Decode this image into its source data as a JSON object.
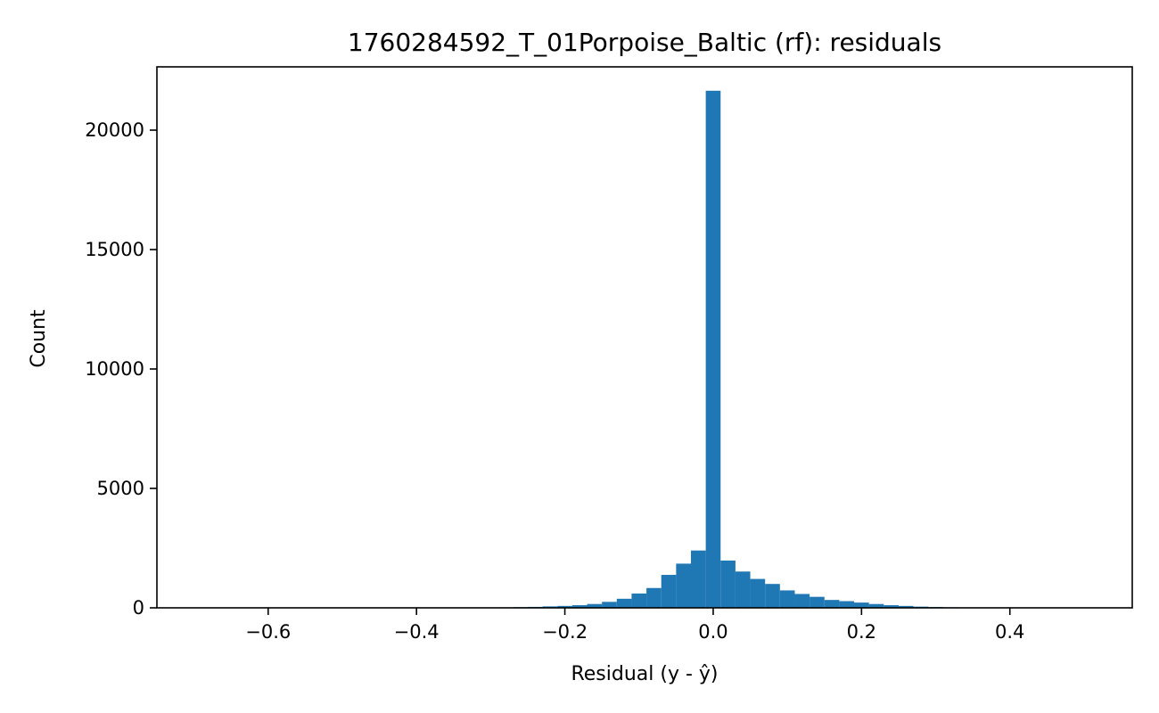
{
  "chart_data": {
    "type": "bar",
    "subtype": "histogram",
    "title": "1760284592_T_01Porpoise_Baltic (rf): residuals",
    "xlabel": "Residual (y - ŷ)",
    "ylabel": "Count",
    "xlim": [
      -0.75,
      0.565
    ],
    "ylim": [
      0,
      22650
    ],
    "xticks": [
      -0.6,
      -0.4,
      -0.2,
      0.0,
      0.2,
      0.4
    ],
    "xtick_labels": [
      "−0.6",
      "−0.4",
      "−0.2",
      "0.0",
      "0.2",
      "0.4"
    ],
    "yticks": [
      0,
      5000,
      10000,
      15000,
      20000
    ],
    "ytick_labels": [
      "0",
      "5000",
      "10000",
      "15000",
      "20000"
    ],
    "grid": false,
    "bar_color": "#1f77b4",
    "bins": [
      {
        "x0": -0.71,
        "x1": -0.69,
        "count": 2
      },
      {
        "x0": -0.69,
        "x1": -0.67,
        "count": 0
      },
      {
        "x0": -0.67,
        "x1": -0.65,
        "count": 1
      },
      {
        "x0": -0.65,
        "x1": -0.63,
        "count": 0
      },
      {
        "x0": -0.63,
        "x1": -0.61,
        "count": 1
      },
      {
        "x0": -0.61,
        "x1": -0.59,
        "count": 1
      },
      {
        "x0": -0.59,
        "x1": -0.57,
        "count": 0
      },
      {
        "x0": -0.57,
        "x1": -0.55,
        "count": 1
      },
      {
        "x0": -0.55,
        "x1": -0.53,
        "count": 1
      },
      {
        "x0": -0.53,
        "x1": -0.51,
        "count": 1
      },
      {
        "x0": -0.51,
        "x1": -0.49,
        "count": 2
      },
      {
        "x0": -0.49,
        "x1": -0.47,
        "count": 2
      },
      {
        "x0": -0.47,
        "x1": -0.45,
        "count": 3
      },
      {
        "x0": -0.45,
        "x1": -0.43,
        "count": 3
      },
      {
        "x0": -0.43,
        "x1": -0.41,
        "count": 4
      },
      {
        "x0": -0.41,
        "x1": -0.39,
        "count": 5
      },
      {
        "x0": -0.39,
        "x1": -0.37,
        "count": 6
      },
      {
        "x0": -0.37,
        "x1": -0.35,
        "count": 8
      },
      {
        "x0": -0.35,
        "x1": -0.33,
        "count": 10
      },
      {
        "x0": -0.33,
        "x1": -0.31,
        "count": 12
      },
      {
        "x0": -0.31,
        "x1": -0.29,
        "count": 15
      },
      {
        "x0": -0.29,
        "x1": -0.27,
        "count": 20
      },
      {
        "x0": -0.27,
        "x1": -0.25,
        "count": 30
      },
      {
        "x0": -0.25,
        "x1": -0.23,
        "count": 40
      },
      {
        "x0": -0.23,
        "x1": -0.21,
        "count": 60
      },
      {
        "x0": -0.21,
        "x1": -0.19,
        "count": 80
      },
      {
        "x0": -0.19,
        "x1": -0.17,
        "count": 110
      },
      {
        "x0": -0.17,
        "x1": -0.15,
        "count": 160
      },
      {
        "x0": -0.15,
        "x1": -0.13,
        "count": 250
      },
      {
        "x0": -0.13,
        "x1": -0.11,
        "count": 380
      },
      {
        "x0": -0.11,
        "x1": -0.09,
        "count": 600
      },
      {
        "x0": -0.09,
        "x1": -0.07,
        "count": 830
      },
      {
        "x0": -0.07,
        "x1": -0.05,
        "count": 1380
      },
      {
        "x0": -0.05,
        "x1": -0.03,
        "count": 1850
      },
      {
        "x0": -0.03,
        "x1": -0.01,
        "count": 2400
      },
      {
        "x0": -0.01,
        "x1": 0.01,
        "count": 21650
      },
      {
        "x0": 0.01,
        "x1": 0.03,
        "count": 1980
      },
      {
        "x0": 0.03,
        "x1": 0.05,
        "count": 1520
      },
      {
        "x0": 0.05,
        "x1": 0.07,
        "count": 1210
      },
      {
        "x0": 0.07,
        "x1": 0.09,
        "count": 1000
      },
      {
        "x0": 0.09,
        "x1": 0.11,
        "count": 730
      },
      {
        "x0": 0.11,
        "x1": 0.13,
        "count": 580
      },
      {
        "x0": 0.13,
        "x1": 0.15,
        "count": 460
      },
      {
        "x0": 0.15,
        "x1": 0.17,
        "count": 330
      },
      {
        "x0": 0.17,
        "x1": 0.19,
        "count": 280
      },
      {
        "x0": 0.19,
        "x1": 0.21,
        "count": 220
      },
      {
        "x0": 0.21,
        "x1": 0.23,
        "count": 160
      },
      {
        "x0": 0.23,
        "x1": 0.25,
        "count": 110
      },
      {
        "x0": 0.25,
        "x1": 0.27,
        "count": 80
      },
      {
        "x0": 0.27,
        "x1": 0.29,
        "count": 50
      },
      {
        "x0": 0.29,
        "x1": 0.31,
        "count": 35
      },
      {
        "x0": 0.31,
        "x1": 0.33,
        "count": 22
      },
      {
        "x0": 0.33,
        "x1": 0.35,
        "count": 15
      },
      {
        "x0": 0.35,
        "x1": 0.37,
        "count": 10
      },
      {
        "x0": 0.37,
        "x1": 0.39,
        "count": 7
      },
      {
        "x0": 0.39,
        "x1": 0.41,
        "count": 5
      },
      {
        "x0": 0.41,
        "x1": 0.43,
        "count": 3
      },
      {
        "x0": 0.43,
        "x1": 0.45,
        "count": 2
      },
      {
        "x0": 0.45,
        "x1": 0.47,
        "count": 2
      },
      {
        "x0": 0.47,
        "x1": 0.49,
        "count": 1
      },
      {
        "x0": 0.49,
        "x1": 0.51,
        "count": 1
      },
      {
        "x0": 0.51,
        "x1": 0.53,
        "count": 1
      }
    ]
  }
}
